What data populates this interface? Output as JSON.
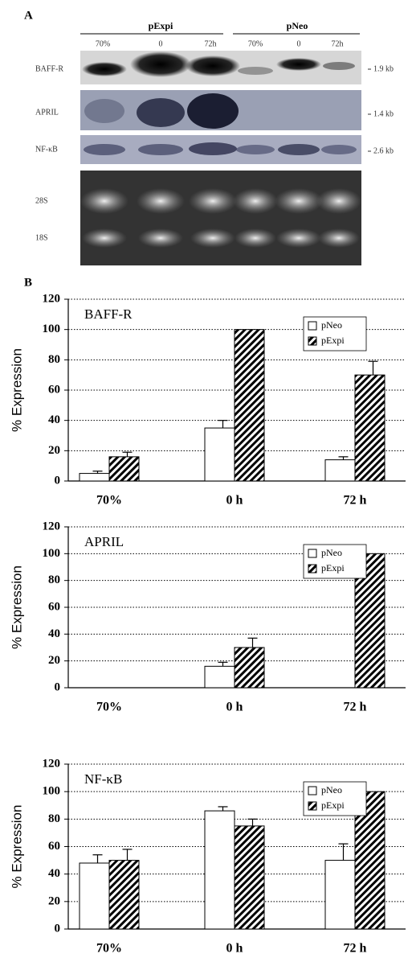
{
  "panel_a": {
    "label": "A",
    "groups": [
      "pExpi",
      "pNeo"
    ],
    "lanes": [
      "70%",
      "0",
      "72h",
      "70%",
      "0",
      "72h"
    ],
    "rows": [
      "BAFF-R",
      "APRIL",
      "NF-κB",
      "28S",
      "18S"
    ],
    "sizes": [
      "1.9 kb",
      "1.4 kb",
      "2.6 kb"
    ]
  },
  "panel_b_label": "B",
  "chart_data": [
    {
      "type": "bar",
      "title": "BAFF-R",
      "ylabel": "% Expression",
      "categories": [
        "70%",
        "0 h",
        "72 h"
      ],
      "series": [
        {
          "name": "pNeo",
          "color": "#ffffff",
          "values": [
            5,
            35,
            14
          ],
          "errors": [
            1.5,
            5,
            2
          ]
        },
        {
          "name": "pExpi",
          "color": "hatch",
          "values": [
            16,
            100,
            70
          ],
          "errors": [
            3,
            null,
            9
          ]
        }
      ],
      "ylim": [
        0,
        120
      ],
      "yticks": [
        0,
        20,
        40,
        60,
        80,
        100,
        120
      ],
      "grid": true,
      "legend": "upper right"
    },
    {
      "type": "bar",
      "title": "APRIL",
      "ylabel": "% Expression",
      "categories": [
        "70%",
        "0 h",
        "72 h"
      ],
      "series": [
        {
          "name": "pNeo",
          "color": "#ffffff",
          "values": [
            0,
            16,
            0
          ],
          "errors": [
            null,
            3,
            null
          ]
        },
        {
          "name": "pExpi",
          "color": "hatch",
          "values": [
            0,
            30,
            100
          ],
          "errors": [
            null,
            7,
            null
          ]
        }
      ],
      "ylim": [
        0,
        120
      ],
      "yticks": [
        0,
        20,
        40,
        60,
        80,
        100,
        120
      ],
      "grid": true,
      "legend": "upper right"
    },
    {
      "type": "bar",
      "title": "NF-κB",
      "ylabel": "% Expression",
      "categories": [
        "70%",
        "0 h",
        "72 h"
      ],
      "series": [
        {
          "name": "pNeo",
          "color": "#ffffff",
          "values": [
            48,
            86,
            50
          ],
          "errors": [
            6,
            3,
            12
          ]
        },
        {
          "name": "pExpi",
          "color": "hatch",
          "values": [
            50,
            75,
            100
          ],
          "errors": [
            8,
            5,
            null
          ]
        }
      ],
      "ylim": [
        0,
        120
      ],
      "yticks": [
        0,
        20,
        40,
        60,
        80,
        100,
        120
      ],
      "grid": true,
      "legend": "upper right"
    }
  ]
}
